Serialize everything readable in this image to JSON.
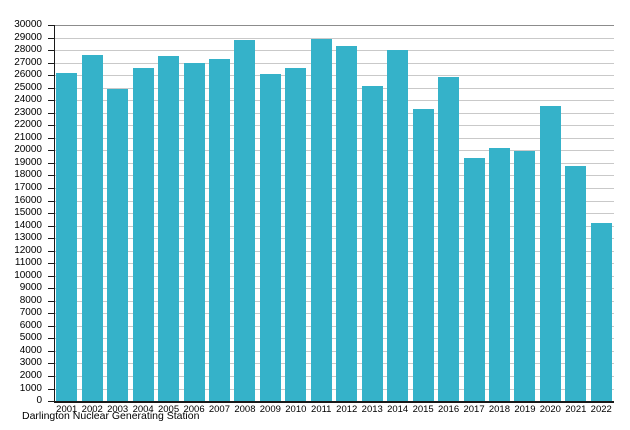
{
  "chart_data": {
    "type": "bar",
    "title": "",
    "caption": "Darlington Nuclear Generating Station",
    "categories": [
      "2001",
      "2002",
      "2003",
      "2004",
      "2005",
      "2006",
      "2007",
      "2008",
      "2009",
      "2010",
      "2011",
      "2012",
      "2013",
      "2014",
      "2015",
      "2016",
      "2017",
      "2018",
      "2019",
      "2020",
      "2021",
      "2022"
    ],
    "values": [
      26160,
      27650,
      24890,
      26540,
      27520,
      26940,
      27270,
      28780,
      26130,
      26590,
      28880,
      28350,
      25120,
      28020,
      23340,
      25820,
      19390,
      20210,
      19990,
      23520,
      18720,
      14210
    ],
    "xlabel": "",
    "ylabel": "",
    "ylim": [
      0,
      30000
    ],
    "ytick_step": 1000,
    "grid": "horizontal",
    "legend": "none",
    "colors": {
      "bar": "#35b2c9",
      "gridline": "#c9c9c9",
      "top_gridline": "#8c8c8c",
      "axis": "#1a1a1a"
    }
  }
}
